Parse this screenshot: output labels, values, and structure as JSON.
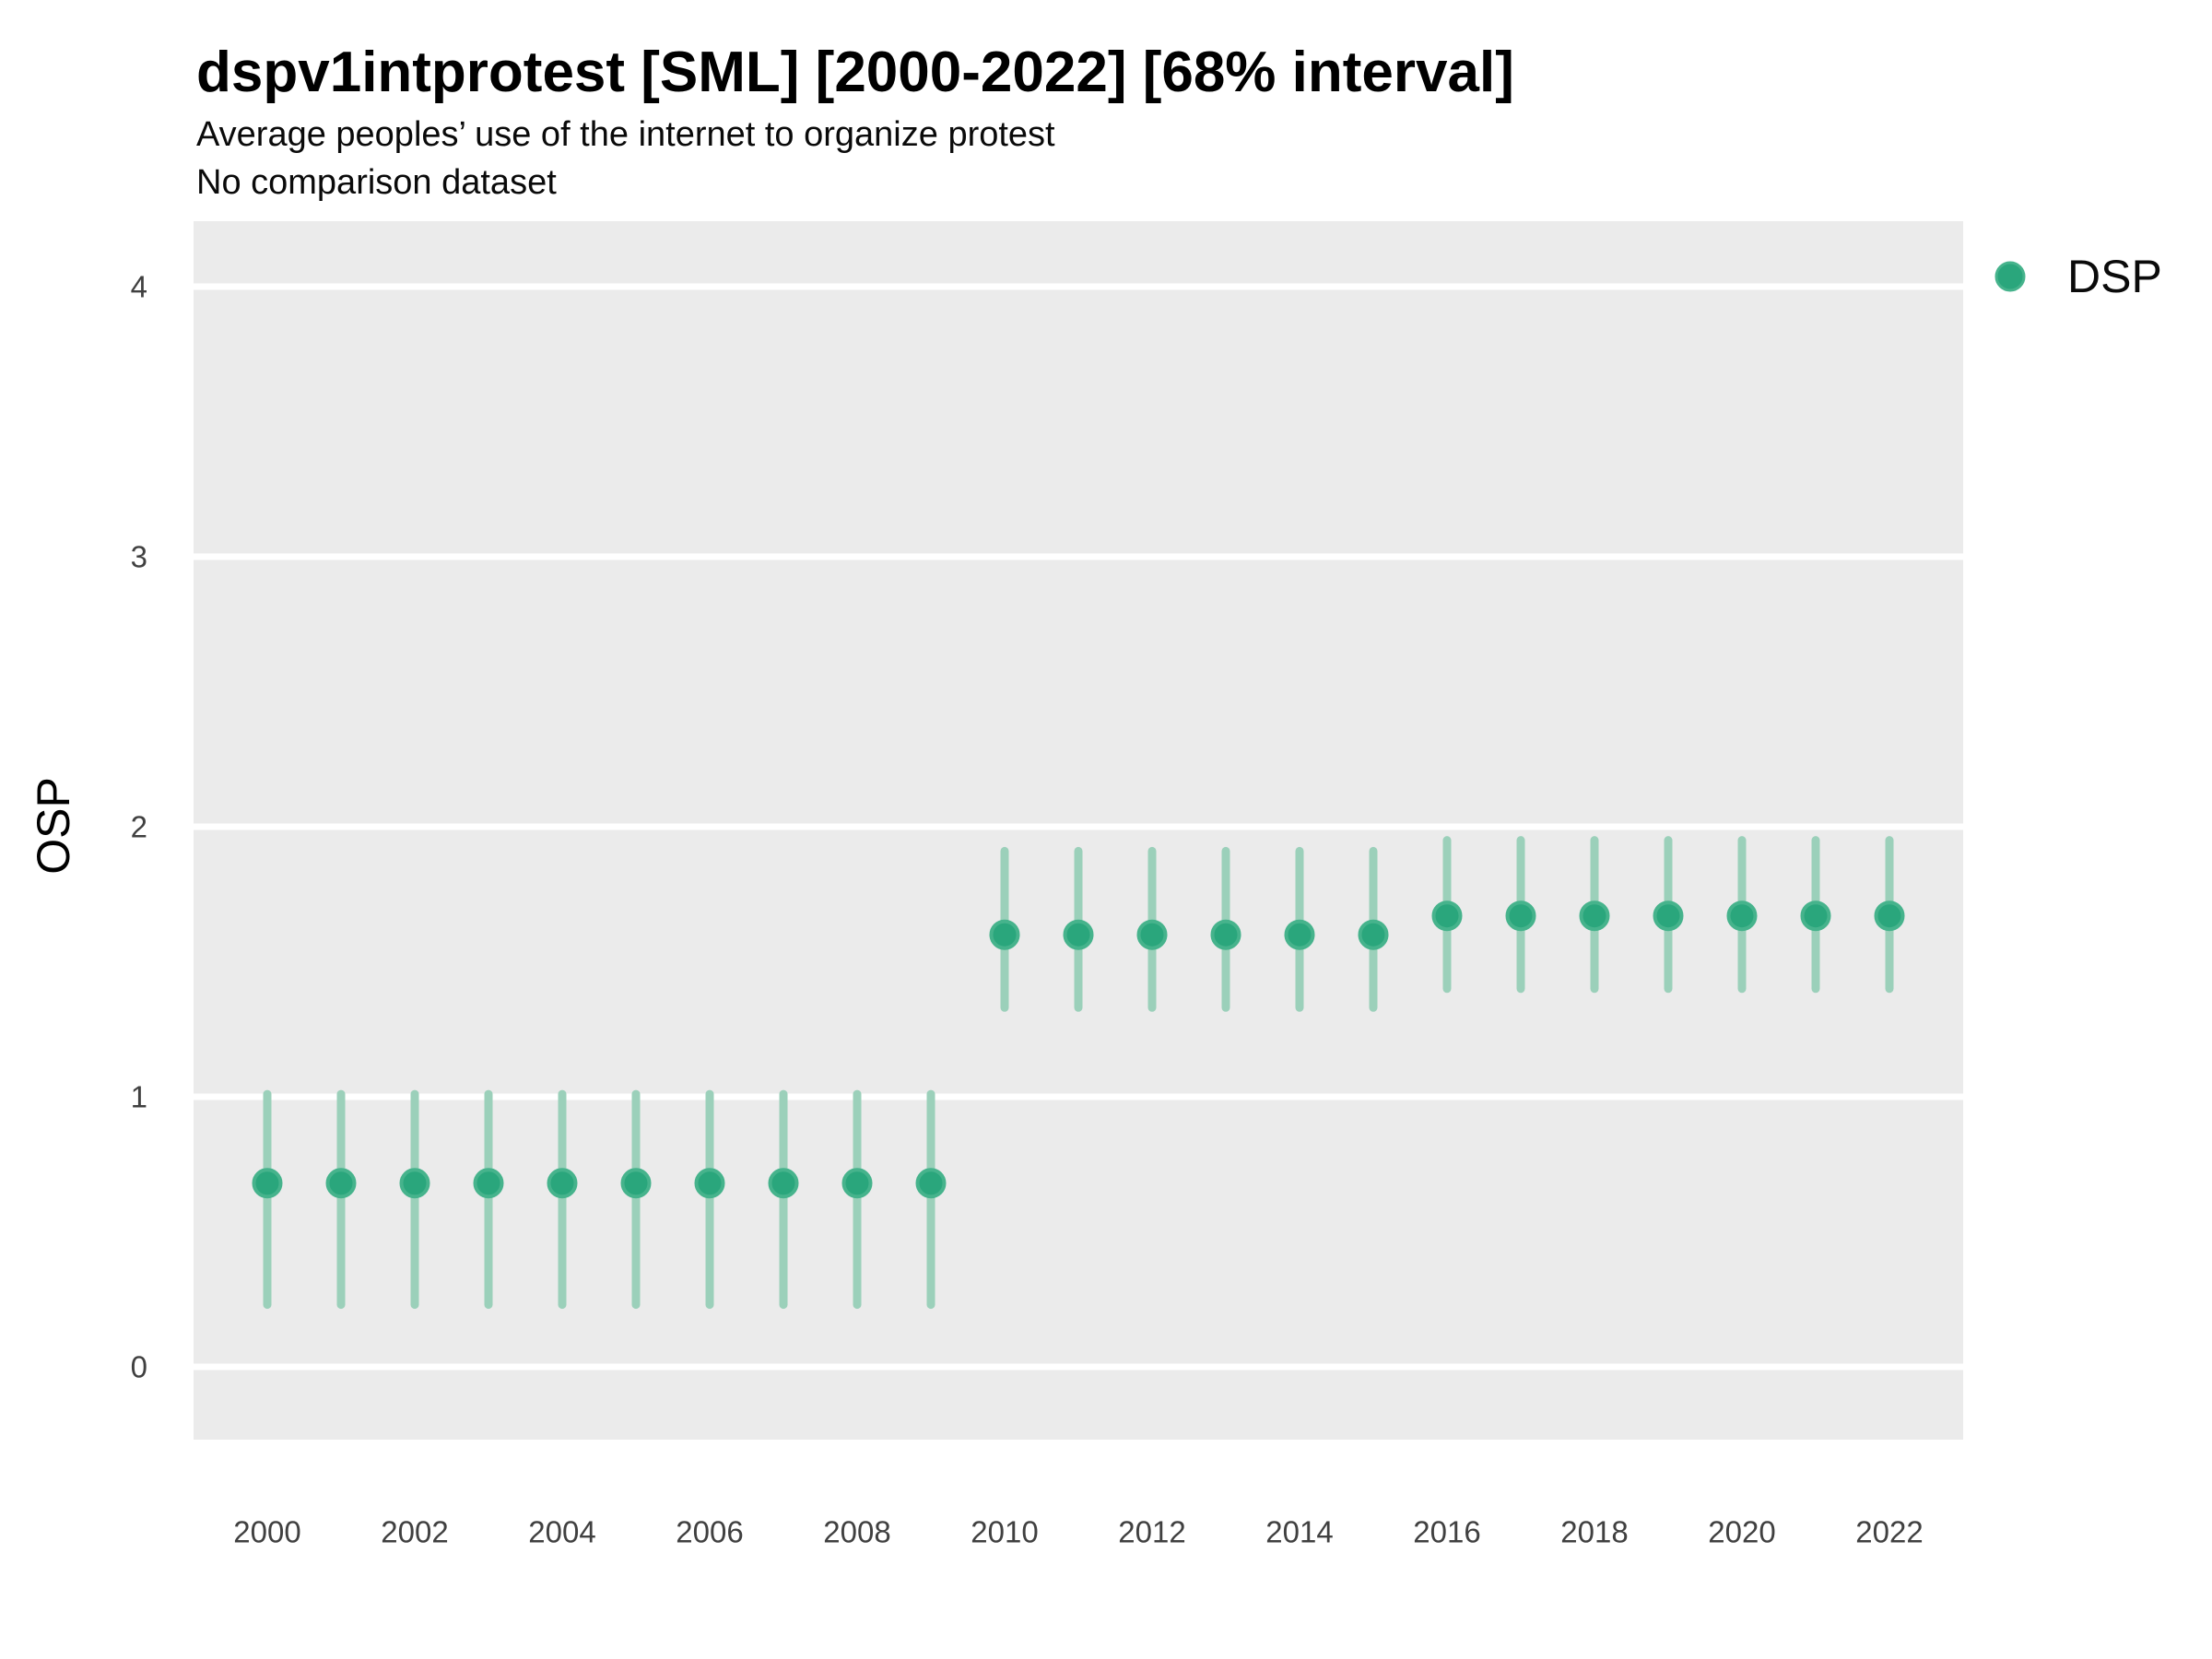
{
  "chart_data": {
    "type": "scatter",
    "title": "dspv1intprotest [SML] [2000-2022] [68% interval]",
    "subtitle": "Average peoples’ use of the internet to organize protest",
    "note": "No comparison dataset",
    "xlabel": "",
    "ylabel": "OSP",
    "interval_level": "68%",
    "grid": "horizontal-major-only",
    "legend": {
      "position": "right",
      "items": [
        {
          "label": "DSP"
        }
      ]
    },
    "x_ticks": [
      2000,
      2002,
      2004,
      2006,
      2008,
      2010,
      2012,
      2014,
      2016,
      2018,
      2020,
      2022
    ],
    "y_ticks": [
      0,
      1,
      2,
      3,
      4
    ],
    "ylim": [
      -0.28,
      4.25
    ],
    "colors": {
      "point_fill": "#2AA67C",
      "point_stroke": "#46B38C",
      "interval_bar": "#9BD0BA",
      "panel_bg": "#EBEBEB",
      "gridline": "#FFFFFF"
    },
    "series": [
      {
        "name": "DSP",
        "points": [
          {
            "year": 2000,
            "value": 0.68,
            "lo": 0.23,
            "hi": 1.01
          },
          {
            "year": 2001,
            "value": 0.68,
            "lo": 0.23,
            "hi": 1.01
          },
          {
            "year": 2002,
            "value": 0.68,
            "lo": 0.23,
            "hi": 1.01
          },
          {
            "year": 2003,
            "value": 0.68,
            "lo": 0.23,
            "hi": 1.01
          },
          {
            "year": 2004,
            "value": 0.68,
            "lo": 0.23,
            "hi": 1.01
          },
          {
            "year": 2005,
            "value": 0.68,
            "lo": 0.23,
            "hi": 1.01
          },
          {
            "year": 2006,
            "value": 0.68,
            "lo": 0.23,
            "hi": 1.01
          },
          {
            "year": 2007,
            "value": 0.68,
            "lo": 0.23,
            "hi": 1.01
          },
          {
            "year": 2008,
            "value": 0.68,
            "lo": 0.23,
            "hi": 1.01
          },
          {
            "year": 2009,
            "value": 0.68,
            "lo": 0.23,
            "hi": 1.01
          },
          {
            "year": 2010,
            "value": 1.6,
            "lo": 1.33,
            "hi": 1.91
          },
          {
            "year": 2011,
            "value": 1.6,
            "lo": 1.33,
            "hi": 1.91
          },
          {
            "year": 2012,
            "value": 1.6,
            "lo": 1.33,
            "hi": 1.91
          },
          {
            "year": 2013,
            "value": 1.6,
            "lo": 1.33,
            "hi": 1.91
          },
          {
            "year": 2014,
            "value": 1.6,
            "lo": 1.33,
            "hi": 1.91
          },
          {
            "year": 2015,
            "value": 1.6,
            "lo": 1.33,
            "hi": 1.91
          },
          {
            "year": 2016,
            "value": 1.67,
            "lo": 1.4,
            "hi": 1.95
          },
          {
            "year": 2017,
            "value": 1.67,
            "lo": 1.4,
            "hi": 1.95
          },
          {
            "year": 2018,
            "value": 1.67,
            "lo": 1.4,
            "hi": 1.95
          },
          {
            "year": 2019,
            "value": 1.67,
            "lo": 1.4,
            "hi": 1.95
          },
          {
            "year": 2020,
            "value": 1.67,
            "lo": 1.4,
            "hi": 1.95
          },
          {
            "year": 2021,
            "value": 1.67,
            "lo": 1.4,
            "hi": 1.95
          },
          {
            "year": 2022,
            "value": 1.67,
            "lo": 1.4,
            "hi": 1.95
          }
        ]
      }
    ]
  }
}
